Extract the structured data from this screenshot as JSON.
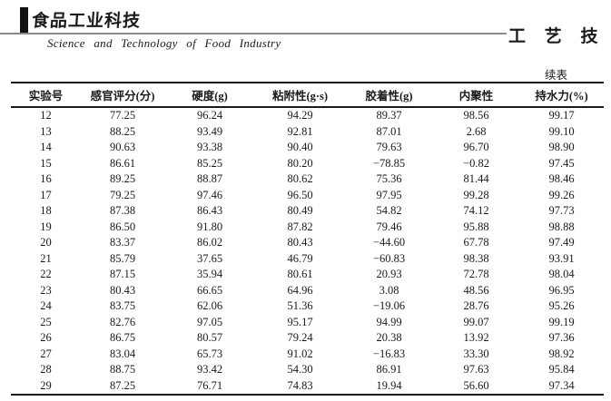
{
  "journal": {
    "logo_text": "食品工业科技",
    "name_en": "Science and Technology of Food Industry",
    "section_title": "工 艺 技 术"
  },
  "table": {
    "continued_label": "续表",
    "headers": [
      "实验号",
      "感官评分(分)",
      "硬度(g)",
      "粘附性(g·s)",
      "胶着性(g)",
      "内聚性",
      "持水力(%)"
    ],
    "rows": [
      [
        "12",
        "77.25",
        "96.24",
        "94.29",
        "89.37",
        "98.56",
        "99.17"
      ],
      [
        "13",
        "88.25",
        "93.49",
        "92.81",
        "87.01",
        "2.68",
        "99.10"
      ],
      [
        "14",
        "90.63",
        "93.38",
        "90.40",
        "79.63",
        "96.70",
        "98.90"
      ],
      [
        "15",
        "86.61",
        "85.25",
        "80.20",
        "−78.85",
        "−0.82",
        "97.45"
      ],
      [
        "16",
        "89.25",
        "88.87",
        "80.62",
        "75.36",
        "81.44",
        "98.46"
      ],
      [
        "17",
        "79.25",
        "97.46",
        "96.50",
        "97.95",
        "99.28",
        "99.26"
      ],
      [
        "18",
        "87.38",
        "86.43",
        "80.49",
        "54.82",
        "74.12",
        "97.73"
      ],
      [
        "19",
        "86.50",
        "91.80",
        "87.82",
        "79.46",
        "95.88",
        "98.88"
      ],
      [
        "20",
        "83.37",
        "86.02",
        "80.43",
        "−44.60",
        "67.78",
        "97.49"
      ],
      [
        "21",
        "85.79",
        "37.65",
        "46.79",
        "−60.83",
        "98.38",
        "93.91"
      ],
      [
        "22",
        "87.15",
        "35.94",
        "80.61",
        "20.93",
        "72.78",
        "98.04"
      ],
      [
        "23",
        "80.43",
        "66.65",
        "64.96",
        "3.08",
        "48.56",
        "96.95"
      ],
      [
        "24",
        "83.75",
        "62.06",
        "51.36",
        "−19.06",
        "28.76",
        "95.26"
      ],
      [
        "25",
        "82.76",
        "97.05",
        "95.17",
        "94.99",
        "99.07",
        "99.19"
      ],
      [
        "26",
        "86.75",
        "80.57",
        "79.24",
        "20.38",
        "13.92",
        "97.36"
      ],
      [
        "27",
        "83.04",
        "65.73",
        "91.02",
        "−16.83",
        "33.30",
        "98.92"
      ],
      [
        "28",
        "88.75",
        "93.42",
        "54.30",
        "86.91",
        "97.63",
        "95.84"
      ],
      [
        "29",
        "87.25",
        "76.71",
        "74.83",
        "19.94",
        "56.60",
        "97.34"
      ]
    ]
  }
}
